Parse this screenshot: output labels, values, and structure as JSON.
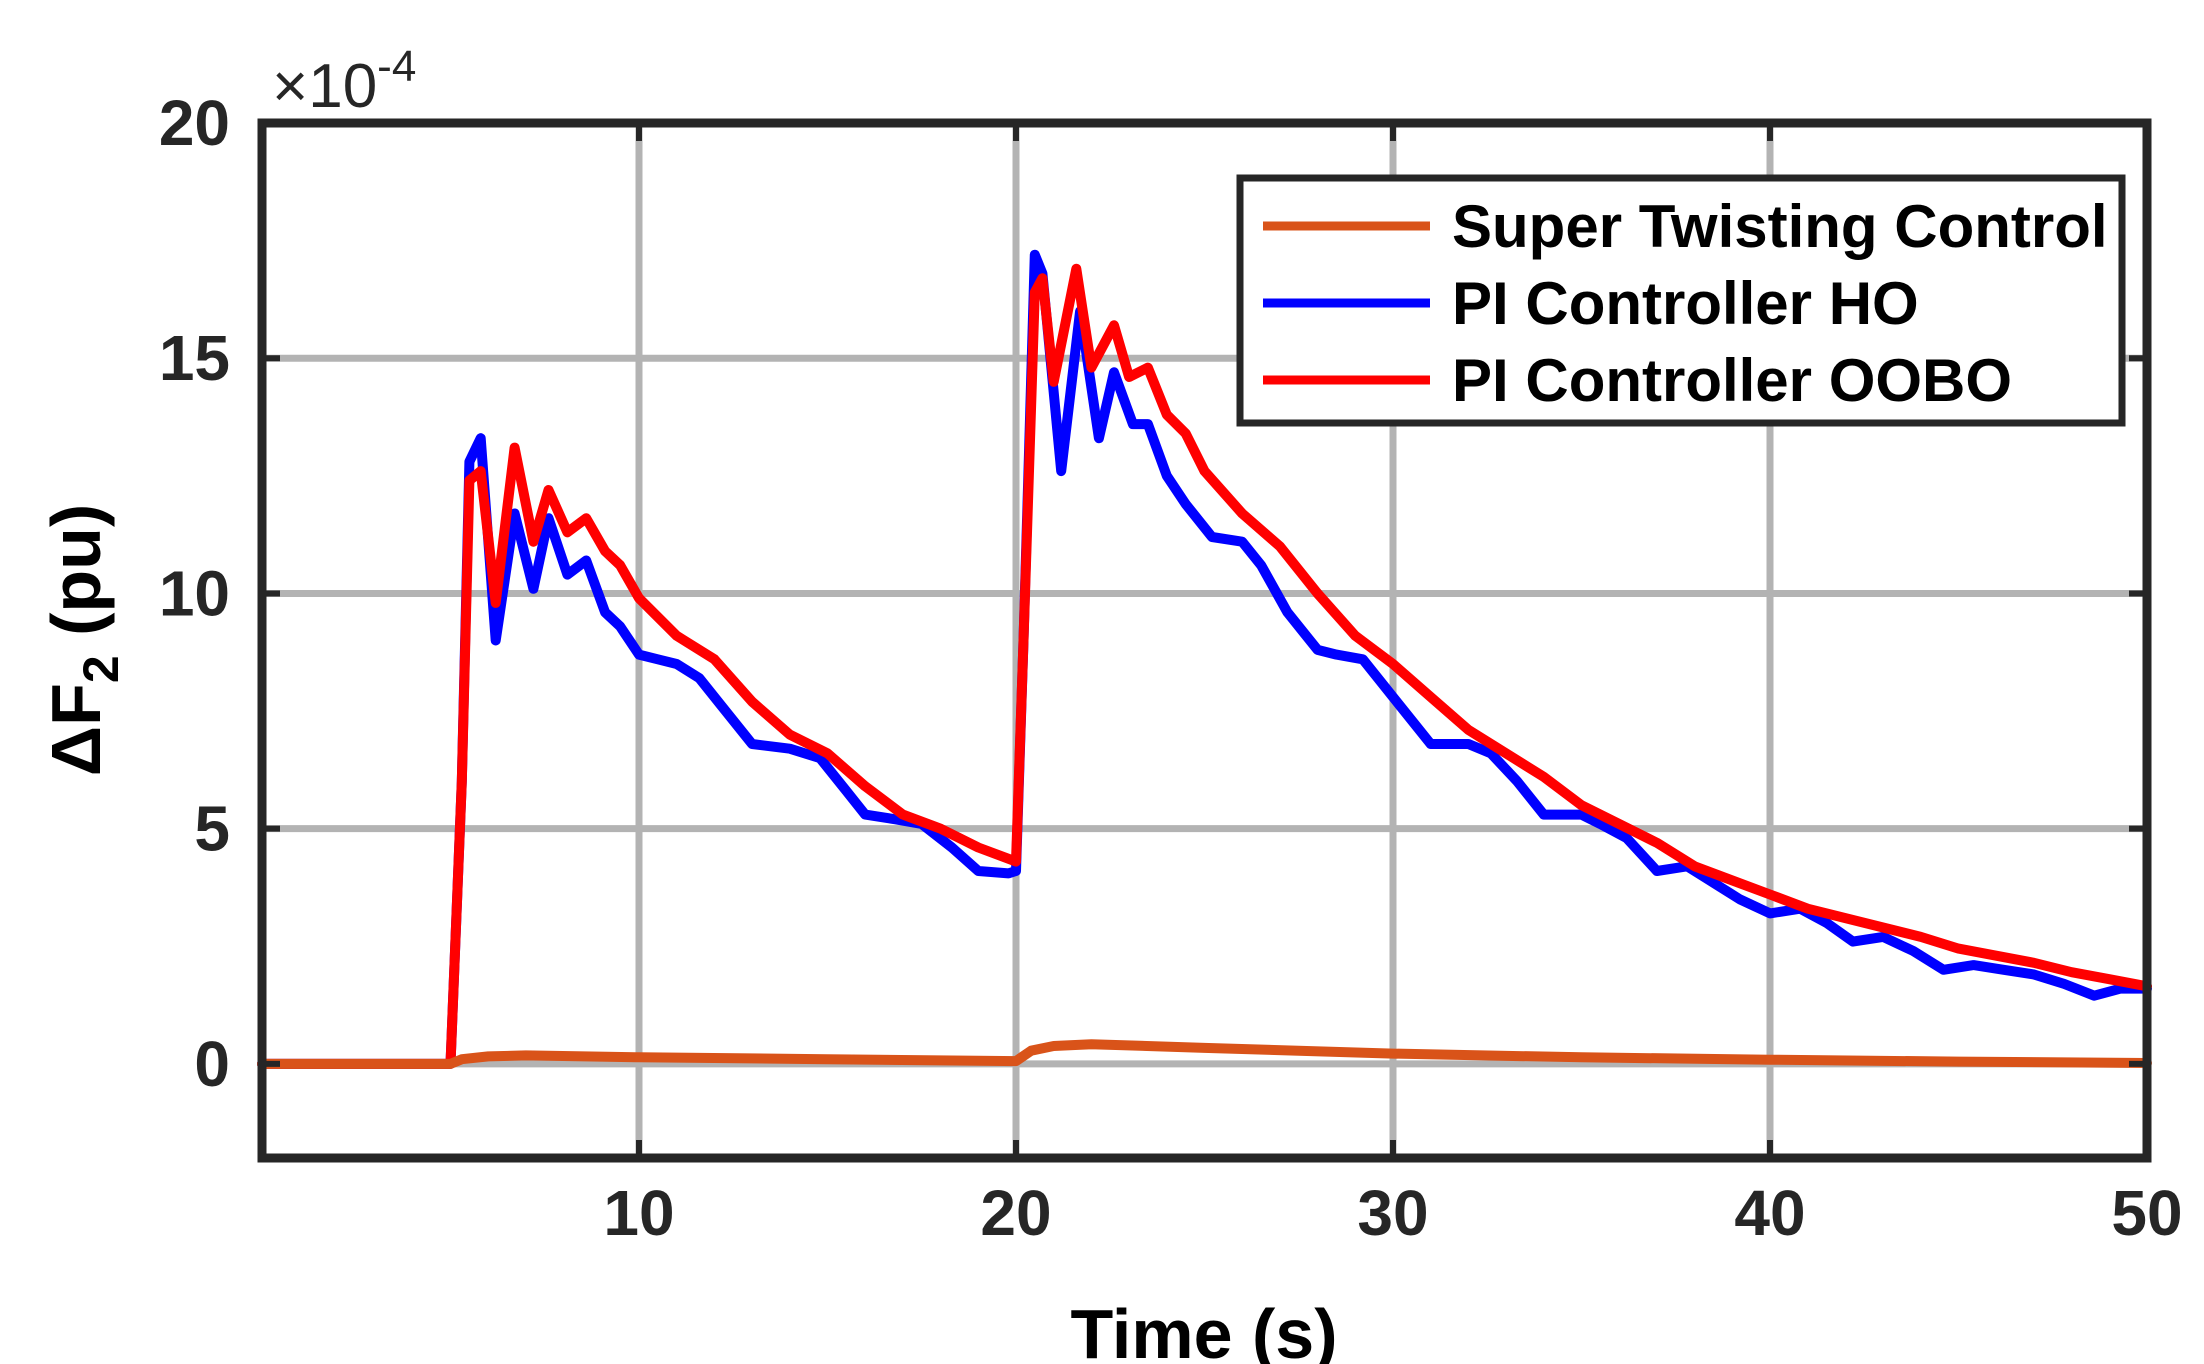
{
  "chart_data": {
    "type": "line",
    "title": "",
    "xlabel": "Time (s)",
    "ylabel_main": "ΔF",
    "ylabel_sub": "2",
    "ylabel_unit": "(pu)",
    "exponent_prefix": "×10",
    "exponent_power": "-4",
    "xlim": [
      0,
      50
    ],
    "ylim": [
      -2,
      20
    ],
    "x_ticks": [
      10,
      20,
      30,
      40,
      50
    ],
    "x_tick_labels": [
      "10",
      "20",
      "30",
      "40",
      "50"
    ],
    "y_ticks": [
      0,
      5,
      10,
      15,
      20
    ],
    "y_tick_labels": [
      "0",
      "5",
      "10",
      "15",
      "20"
    ],
    "grid": true,
    "legend_position": "top-right",
    "series": [
      {
        "name": "Super Twisting Control",
        "color": "#D95319",
        "x": [
          0,
          5.0,
          5.3,
          6.0,
          7.0,
          10,
          15,
          20,
          20.4,
          21,
          22,
          25,
          30,
          35,
          40,
          45,
          50
        ],
        "y": [
          0,
          0,
          0.1,
          0.16,
          0.18,
          0.14,
          0.1,
          0.06,
          0.28,
          0.38,
          0.42,
          0.34,
          0.22,
          0.14,
          0.09,
          0.05,
          0.02
        ]
      },
      {
        "name": "PI Controller HO",
        "color": "#0000FF",
        "x": [
          0,
          5.0,
          5.3,
          5.5,
          5.8,
          6.2,
          6.7,
          7.2,
          7.6,
          8.1,
          8.6,
          9.1,
          9.5,
          10,
          10.5,
          11,
          11.6,
          12.2,
          13,
          14,
          14.8,
          15.5,
          16,
          16.8,
          17.5,
          18.3,
          19,
          19.8,
          20.0,
          20.2,
          20.5,
          20.7,
          21.2,
          21.7,
          22.2,
          22.6,
          23.1,
          23.5,
          24,
          24.5,
          25.2,
          26,
          26.5,
          27.2,
          28,
          28.5,
          29.2,
          30,
          31,
          32,
          32.6,
          33.3,
          34,
          35,
          35.5,
          36.2,
          37,
          37.8,
          38.4,
          39.2,
          40,
          40.8,
          41.5,
          42.2,
          43,
          43.8,
          44.6,
          45.4,
          46.2,
          47,
          47.8,
          48.6,
          49.3,
          50
        ],
        "y": [
          0,
          0,
          6,
          12.8,
          13.3,
          9.0,
          11.7,
          10.1,
          11.6,
          10.4,
          10.7,
          9.6,
          9.3,
          8.7,
          8.6,
          8.5,
          8.2,
          7.6,
          6.8,
          6.7,
          6.5,
          5.8,
          5.3,
          5.2,
          5.1,
          4.6,
          4.1,
          4.05,
          4.1,
          9.0,
          17.2,
          16.8,
          12.6,
          16.0,
          13.3,
          14.7,
          13.6,
          13.6,
          12.5,
          11.9,
          11.2,
          11.1,
          10.6,
          9.6,
          8.8,
          8.7,
          8.6,
          7.8,
          6.8,
          6.8,
          6.6,
          6.0,
          5.3,
          5.3,
          5.1,
          4.8,
          4.1,
          4.2,
          3.9,
          3.5,
          3.2,
          3.3,
          3.0,
          2.6,
          2.7,
          2.4,
          2.0,
          2.1,
          2.0,
          1.9,
          1.7,
          1.45,
          1.6,
          1.6
        ]
      },
      {
        "name": "PI Controller OOBO",
        "color": "#FF0000",
        "x": [
          0,
          5.0,
          5.3,
          5.5,
          5.8,
          6.2,
          6.7,
          7.2,
          7.6,
          8.1,
          8.6,
          9.1,
          9.5,
          10,
          11,
          12,
          13,
          14,
          15,
          16,
          17,
          18,
          19,
          20.0,
          20.2,
          20.5,
          20.7,
          21.0,
          21.6,
          22.0,
          22.6,
          23.0,
          23.5,
          24.0,
          24.5,
          25,
          26,
          27,
          28,
          29,
          30,
          31,
          32,
          33,
          34,
          35,
          36,
          37,
          38,
          39,
          40,
          41,
          42,
          43,
          44,
          45,
          46,
          47,
          48,
          49,
          50
        ],
        "y": [
          0,
          0,
          6,
          12.4,
          12.6,
          9.8,
          13.1,
          11.1,
          12.2,
          11.3,
          11.6,
          10.9,
          10.6,
          9.9,
          9.1,
          8.6,
          7.7,
          7.0,
          6.6,
          5.9,
          5.3,
          5.0,
          4.6,
          4.3,
          9.0,
          16.4,
          16.7,
          14.5,
          16.9,
          14.8,
          15.7,
          14.6,
          14.8,
          13.8,
          13.4,
          12.6,
          11.7,
          11.0,
          10.0,
          9.1,
          8.5,
          7.8,
          7.1,
          6.6,
          6.1,
          5.5,
          5.1,
          4.7,
          4.2,
          3.9,
          3.6,
          3.3,
          3.1,
          2.9,
          2.7,
          2.45,
          2.3,
          2.15,
          1.95,
          1.8,
          1.65
        ]
      }
    ]
  }
}
